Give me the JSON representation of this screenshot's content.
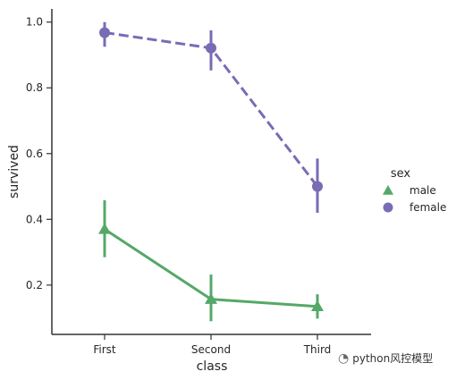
{
  "chart_data": {
    "type": "line",
    "xlabel": "class",
    "ylabel": "survived",
    "categories": [
      "First",
      "Second",
      "Third"
    ],
    "yticks": [
      0.2,
      0.4,
      0.6,
      0.8,
      1.0
    ],
    "ytick_labels": [
      "0.2",
      "0.4",
      "0.6",
      "0.8",
      "1.0"
    ],
    "ylim": [
      0.05,
      1.04
    ],
    "grid": false,
    "legend": {
      "title": "sex",
      "position": "right"
    },
    "series": [
      {
        "name": "male",
        "values": [
          0.37,
          0.157,
          0.135
        ],
        "ci_low": [
          0.285,
          0.09,
          0.098
        ],
        "ci_high": [
          0.458,
          0.232,
          0.172
        ],
        "color": "#55a868",
        "marker": "triangle",
        "linestyle": "solid"
      },
      {
        "name": "female",
        "values": [
          0.968,
          0.921,
          0.5
        ],
        "ci_low": [
          0.925,
          0.853,
          0.42
        ],
        "ci_high": [
          1.0,
          0.975,
          0.585
        ],
        "color": "#7a6bb5",
        "marker": "circle",
        "linestyle": "dashed"
      }
    ]
  },
  "watermark": {
    "icon": "wechat-icon",
    "text": "python风控模型"
  }
}
